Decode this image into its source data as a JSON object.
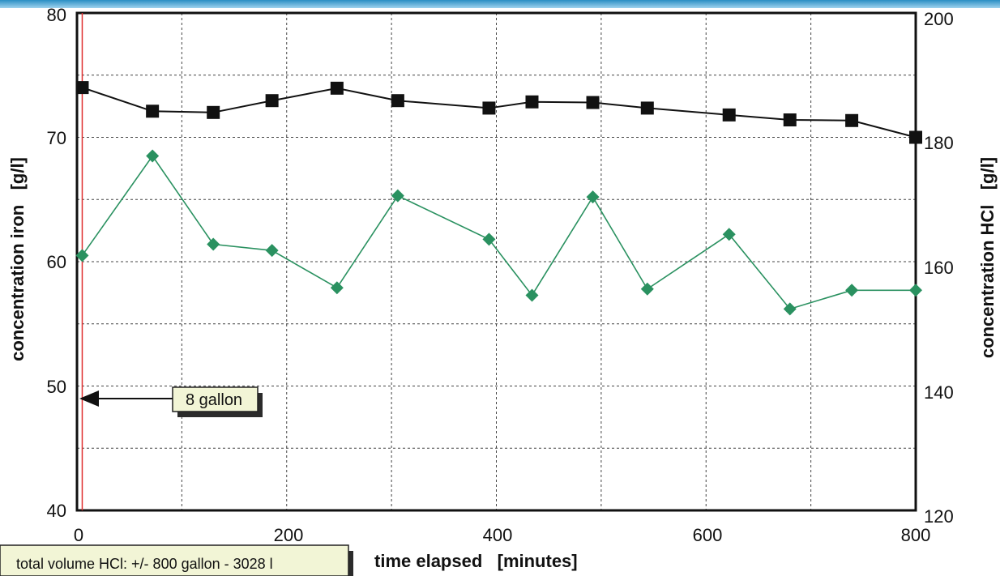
{
  "chart_data": {
    "type": "line",
    "title": "",
    "xlabel": "time elapsed   [minutes]",
    "ylabel_left": "concentration iron   [g/l]",
    "ylabel_right": "concentration HCl   [g/l]",
    "xlim": [
      0,
      800
    ],
    "ylim_left": [
      40,
      80
    ],
    "ylim_right": [
      120,
      200
    ],
    "x_ticks": [
      "0",
      "200",
      "400",
      "600",
      "800"
    ],
    "y_left_ticks": [
      "40",
      "50",
      "60",
      "70",
      "80"
    ],
    "y_right_ticks": [
      "120",
      "140",
      "160",
      "180",
      "200"
    ],
    "grid": true,
    "legend": "none",
    "series": [
      {
        "axis": "right",
        "marker": "square",
        "color": "#111111",
        "x": [
          5,
          72,
          130,
          186,
          248,
          306,
          393,
          434,
          492,
          544,
          622,
          680,
          739,
          800
        ],
        "y": [
          188.0,
          184.2,
          184.0,
          185.9,
          187.9,
          185.9,
          184.7,
          185.7,
          185.6,
          184.7,
          183.6,
          182.8,
          182.7,
          180.0
        ]
      },
      {
        "axis": "left",
        "marker": "diamond",
        "color": "#2a9160",
        "x": [
          5,
          72,
          130,
          186,
          248,
          306,
          393,
          434,
          492,
          544,
          622,
          680,
          739,
          800
        ],
        "y": [
          60.5,
          68.5,
          61.4,
          60.9,
          57.9,
          65.3,
          61.8,
          57.3,
          65.2,
          57.8,
          62.2,
          56.2,
          57.7,
          57.7
        ]
      }
    ],
    "annotations": [
      {
        "text": "8 gallon",
        "x": 0,
        "y": 49,
        "axis": "left",
        "arrow": "left"
      },
      {
        "text": "total volume HCl: +/- 800 gallon - 3028 l"
      }
    ],
    "reference_line": {
      "x": 5,
      "color": "#e03030"
    }
  }
}
